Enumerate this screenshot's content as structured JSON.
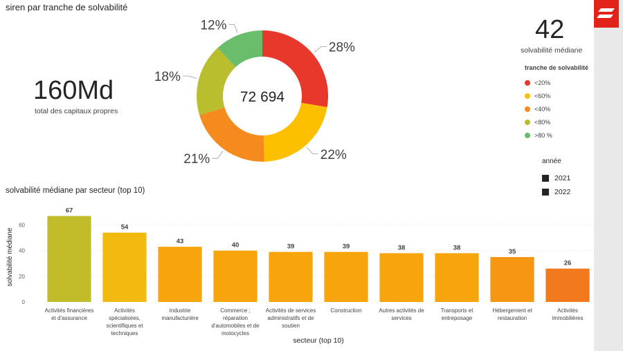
{
  "header": {
    "title": "siren par tranche de solvabilité"
  },
  "kpi_capitaux": {
    "value": "160Md",
    "label": "total des capitaux propres"
  },
  "kpi_solvabilite": {
    "value": "42",
    "label": "solvabilité médiane"
  },
  "donut": {
    "center": "72 694"
  },
  "legend": {
    "title": "tranche de solvabilité",
    "items": [
      {
        "label": "<20%",
        "color": "#e8382c"
      },
      {
        "label": "<60%",
        "color": "#fdc000"
      },
      {
        "label": "<40%",
        "color": "#f58a1f"
      },
      {
        "label": "<80%",
        "color": "#b8be2d"
      },
      {
        "label": ">80 %",
        "color": "#6abd6a"
      }
    ]
  },
  "year_slicer": {
    "title": "année",
    "items": [
      {
        "label": "2021"
      },
      {
        "label": "2022"
      }
    ]
  },
  "bar_section": {
    "title": "solvabilité médiane par secteur (top 10)"
  },
  "chart_data": [
    {
      "type": "pie",
      "title": "siren par tranche de solvabilité",
      "categories": [
        "<20%",
        "<60%",
        "<40%",
        "<80%",
        ">80 %"
      ],
      "values": [
        28,
        22,
        21,
        18,
        12
      ],
      "labels": [
        "28%",
        "22%",
        "21%",
        "18%",
        "12%"
      ],
      "colors": [
        "#e8382c",
        "#fdc000",
        "#f58a1f",
        "#b8be2d",
        "#6abd6a"
      ],
      "center_label": "72 694"
    },
    {
      "type": "bar",
      "title": "solvabilité médiane par secteur (top 10)",
      "xlabel": "secteur (top 10)",
      "ylabel": "solvabilité médiane",
      "ylim": [
        0,
        70
      ],
      "yticks": [
        0,
        20,
        40,
        60
      ],
      "grid": true,
      "categories": [
        [
          "Activités financières",
          "et d'assurance"
        ],
        [
          "Activités",
          "spécialisées,",
          "scientifiques et",
          "techniques"
        ],
        [
          "Industrie",
          "manufacturière"
        ],
        [
          "Commerce ;",
          "réparation",
          "d'automobiles et de",
          "motocycles"
        ],
        [
          "Activités de services",
          "administratifs et de",
          "soutien"
        ],
        [
          "Construction"
        ],
        [
          "Autres activités de",
          "services"
        ],
        [
          "Transports et",
          "entreposage"
        ],
        [
          "Hébergement et",
          "restauration"
        ],
        [
          "Activités",
          "immobilières"
        ]
      ],
      "values": [
        67,
        54,
        43,
        40,
        39,
        39,
        38,
        38,
        35,
        26
      ],
      "colors": [
        "#c3bc2a",
        "#f2b90f",
        "#f8a50d",
        "#f8a50d",
        "#f8a50d",
        "#f8a50d",
        "#f8a50d",
        "#f8a50d",
        "#f59712",
        "#f07a1d"
      ]
    }
  ]
}
